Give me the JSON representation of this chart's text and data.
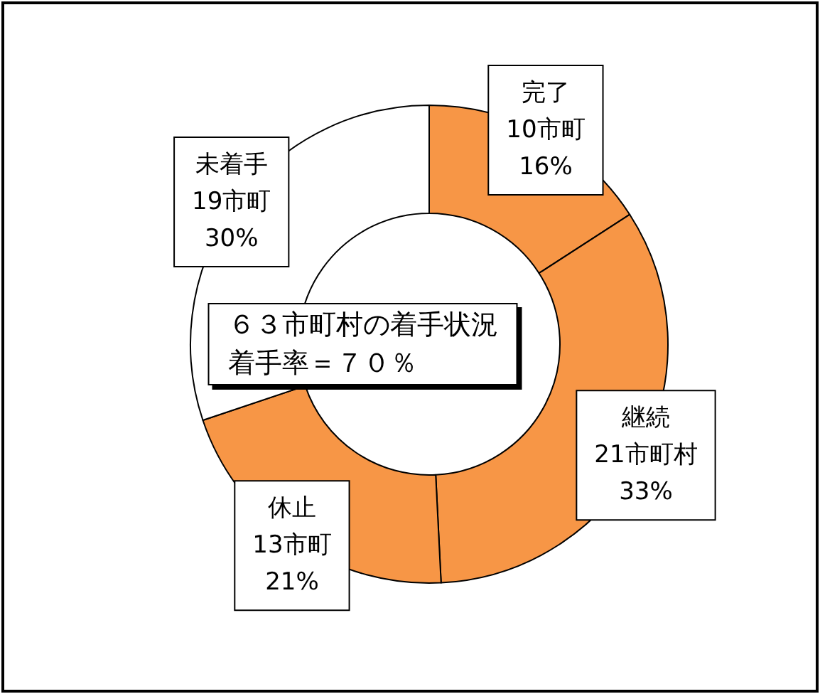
{
  "chart_data": {
    "type": "donut",
    "title": "６３市町村の着手状況",
    "subtitle": "着手率＝７０％",
    "categories": [
      "完了",
      "継続",
      "休止",
      "未着手"
    ],
    "values": [
      10,
      21,
      13,
      19
    ],
    "colors": [
      "#f79646",
      "#f79646",
      "#f79646",
      "#ffffff"
    ],
    "value_labels": [
      "10市町\n16%",
      "21市町村\n33%",
      "13市町\n21%",
      "19市町\n30%"
    ],
    "legend": false
  }
}
